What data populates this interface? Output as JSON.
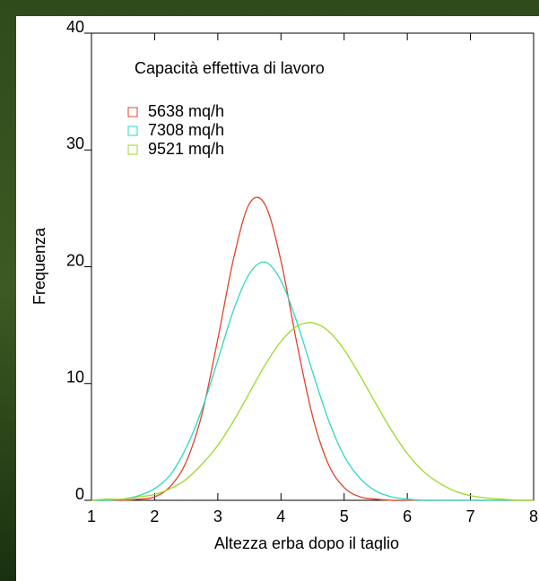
{
  "chart_data": {
    "type": "line",
    "title": "Capacità effettiva di lavoro",
    "xlabel": "Altezza erba dopo il taglio",
    "ylabel": "Frequenza",
    "x": [
      1,
      1.25,
      1.5,
      1.75,
      2,
      2.25,
      2.5,
      2.75,
      3,
      3.25,
      3.5,
      3.75,
      4,
      4.25,
      4.5,
      4.75,
      5,
      5.25,
      5.5,
      5.75,
      6,
      6.25,
      6.5,
      6.75,
      7,
      7.25,
      7.5,
      7.75,
      8
    ],
    "series": [
      {
        "name": "5638 mq/h",
        "color": "#e0442a",
        "values": [
          0,
          0,
          0,
          0.1,
          0.3,
          1.2,
          3.3,
          7.4,
          13.8,
          20.7,
          25.4,
          25.3,
          20.5,
          13.5,
          7.2,
          3.1,
          1.1,
          0.3,
          0.1,
          0,
          0,
          0,
          0,
          0,
          0,
          0,
          0,
          0,
          0
        ]
      },
      {
        "name": "7308 mq/h",
        "color": "#2ed8c0",
        "values": [
          0,
          0,
          0.1,
          0.4,
          1.0,
          2.2,
          4.5,
          7.8,
          12.0,
          16.3,
          19.4,
          20.4,
          18.8,
          15.3,
          11.0,
          6.9,
          3.8,
          1.9,
          0.8,
          0.3,
          0.1,
          0,
          0,
          0,
          0,
          0,
          0,
          0,
          0
        ]
      },
      {
        "name": "9521 mq/h",
        "color": "#9ed82a",
        "values": [
          0,
          0.1,
          0.1,
          0.3,
          0.5,
          1.0,
          1.8,
          3.1,
          4.7,
          6.8,
          9.2,
          11.6,
          13.6,
          14.9,
          15.2,
          14.5,
          12.9,
          10.7,
          8.3,
          6.0,
          4.0,
          2.5,
          1.5,
          0.8,
          0.4,
          0.2,
          0.1,
          0,
          0
        ]
      }
    ],
    "xlim": [
      1,
      8
    ],
    "xticks": [
      1,
      2,
      3,
      4,
      5,
      6,
      7,
      8
    ],
    "ylim": [
      0,
      40
    ],
    "yticks": [
      0,
      10,
      20,
      30,
      40
    ]
  }
}
